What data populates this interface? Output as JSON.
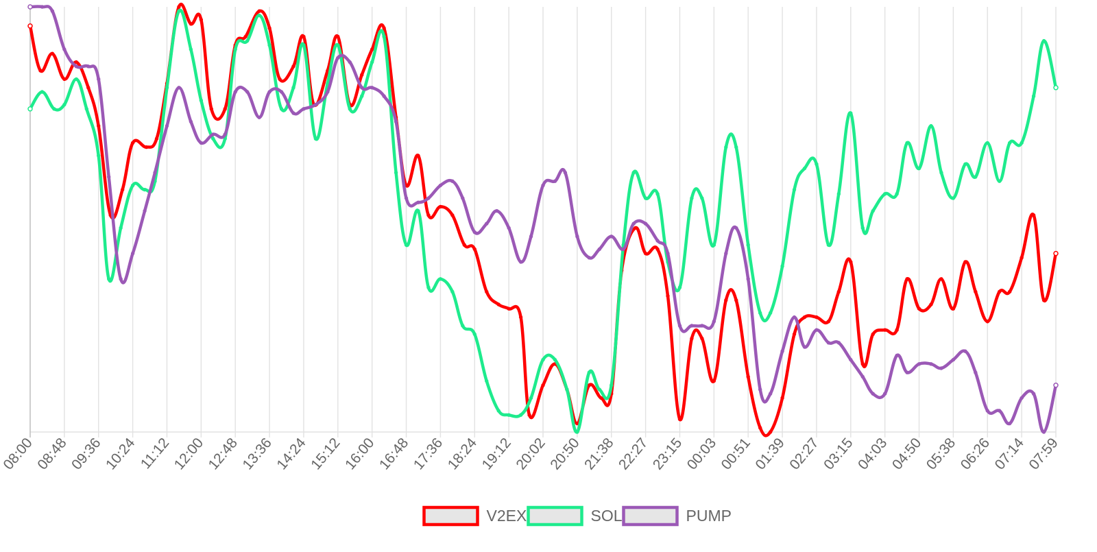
{
  "chart_data": {
    "type": "line",
    "smooth": true,
    "grid": {
      "vertical": true,
      "horizontal": false
    },
    "legend_position": "bottom-center",
    "y_axis": {
      "labels_shown": false,
      "ylim": [
        0,
        100
      ]
    },
    "x_tick_labels": [
      "08:00",
      "08:48",
      "09:36",
      "10:24",
      "11:12",
      "12:00",
      "12:48",
      "13:36",
      "14:24",
      "15:12",
      "16:00",
      "16:48",
      "17:36",
      "18:24",
      "19:12",
      "20:02",
      "20:50",
      "21:38",
      "22:27",
      "23:15",
      "00:03",
      "00:51",
      "01:39",
      "02:27",
      "03:15",
      "04:03",
      "04:50",
      "05:38",
      "06:26",
      "07:14",
      "07:59"
    ],
    "x_positions": [
      0,
      1,
      2,
      3,
      4,
      5,
      6,
      7,
      8,
      9,
      10,
      11,
      12,
      13,
      14,
      15,
      16,
      17,
      18,
      19,
      20,
      21,
      22,
      23,
      24,
      25,
      26,
      27,
      28,
      29,
      30
    ],
    "series": [
      {
        "name": "V2EX",
        "color": "#ff0000",
        "points": [
          [
            0,
            95.5
          ],
          [
            0.3,
            85
          ],
          [
            0.65,
            89
          ],
          [
            1,
            83
          ],
          [
            1.35,
            87
          ],
          [
            1.7,
            81
          ],
          [
            2,
            72
          ],
          [
            2.35,
            51
          ],
          [
            2.7,
            57
          ],
          [
            3,
            68
          ],
          [
            3.4,
            67
          ],
          [
            3.7,
            69
          ],
          [
            4,
            82
          ],
          [
            4.35,
            100
          ],
          [
            4.7,
            96
          ],
          [
            5,
            97
          ],
          [
            5.3,
            76
          ],
          [
            5.7,
            76
          ],
          [
            6,
            91
          ],
          [
            6.3,
            93
          ],
          [
            6.7,
            99
          ],
          [
            7,
            95
          ],
          [
            7.3,
            83
          ],
          [
            7.7,
            86
          ],
          [
            8,
            93
          ],
          [
            8.3,
            77
          ],
          [
            8.7,
            85
          ],
          [
            9,
            93
          ],
          [
            9.35,
            77
          ],
          [
            9.7,
            84
          ],
          [
            10,
            90
          ],
          [
            10.35,
            95
          ],
          [
            10.7,
            74
          ],
          [
            11,
            58
          ],
          [
            11.35,
            65
          ],
          [
            11.65,
            51
          ],
          [
            12,
            53
          ],
          [
            12.35,
            51
          ],
          [
            12.7,
            44
          ],
          [
            13,
            43
          ],
          [
            13.35,
            33
          ],
          [
            13.7,
            30
          ],
          [
            14,
            29
          ],
          [
            14.35,
            27
          ],
          [
            14.6,
            4
          ],
          [
            15,
            11
          ],
          [
            15.35,
            16
          ],
          [
            15.7,
            10
          ],
          [
            16,
            2
          ],
          [
            16.35,
            11
          ],
          [
            16.7,
            8
          ],
          [
            17,
            9
          ],
          [
            17.3,
            38
          ],
          [
            17.7,
            48
          ],
          [
            18,
            42
          ],
          [
            18.35,
            43
          ],
          [
            18.65,
            32
          ],
          [
            19,
            3
          ],
          [
            19.35,
            22
          ],
          [
            19.65,
            22
          ],
          [
            20,
            12
          ],
          [
            20.35,
            31
          ],
          [
            20.65,
            31
          ],
          [
            21,
            13
          ],
          [
            21.35,
            1
          ],
          [
            21.65,
            0
          ],
          [
            22,
            8
          ],
          [
            22.35,
            23
          ],
          [
            22.65,
            27
          ],
          [
            23,
            27
          ],
          [
            23.35,
            26
          ],
          [
            23.65,
            33
          ],
          [
            24,
            40
          ],
          [
            24.35,
            16
          ],
          [
            24.65,
            23
          ],
          [
            25,
            24
          ],
          [
            25.35,
            24
          ],
          [
            25.65,
            36
          ],
          [
            26,
            29
          ],
          [
            26.35,
            30
          ],
          [
            26.65,
            36
          ],
          [
            27,
            29
          ],
          [
            27.35,
            40
          ],
          [
            27.65,
            33
          ],
          [
            28,
            26
          ],
          [
            28.35,
            33
          ],
          [
            28.65,
            33
          ],
          [
            29,
            41
          ],
          [
            29.35,
            51
          ],
          [
            29.65,
            31
          ],
          [
            30,
            42
          ]
        ]
      },
      {
        "name": "SOL",
        "color": "#1eeb8d",
        "points": [
          [
            0,
            76
          ],
          [
            0.35,
            80
          ],
          [
            0.7,
            76
          ],
          [
            1,
            77
          ],
          [
            1.35,
            83
          ],
          [
            1.65,
            76
          ],
          [
            2,
            65
          ],
          [
            2.3,
            36
          ],
          [
            2.65,
            48
          ],
          [
            3,
            58
          ],
          [
            3.35,
            57
          ],
          [
            3.65,
            59
          ],
          [
            4,
            81
          ],
          [
            4.35,
            99
          ],
          [
            4.7,
            90
          ],
          [
            5,
            78
          ],
          [
            5.35,
            69
          ],
          [
            5.7,
            69
          ],
          [
            6,
            90
          ],
          [
            6.35,
            92
          ],
          [
            6.7,
            98
          ],
          [
            7,
            91
          ],
          [
            7.35,
            76
          ],
          [
            7.7,
            81
          ],
          [
            8,
            91
          ],
          [
            8.35,
            69
          ],
          [
            8.7,
            82
          ],
          [
            9,
            91
          ],
          [
            9.35,
            76
          ],
          [
            9.7,
            79
          ],
          [
            10,
            87
          ],
          [
            10.35,
            93
          ],
          [
            10.7,
            61
          ],
          [
            11,
            44
          ],
          [
            11.35,
            52
          ],
          [
            11.65,
            34
          ],
          [
            12,
            36
          ],
          [
            12.35,
            33
          ],
          [
            12.65,
            25
          ],
          [
            13,
            23
          ],
          [
            13.35,
            12
          ],
          [
            13.7,
            5
          ],
          [
            14,
            4
          ],
          [
            14.35,
            4
          ],
          [
            14.65,
            8
          ],
          [
            15,
            17
          ],
          [
            15.35,
            17
          ],
          [
            15.7,
            10
          ],
          [
            16,
            0
          ],
          [
            16.35,
            14
          ],
          [
            16.65,
            10
          ],
          [
            17,
            11
          ],
          [
            17.35,
            44
          ],
          [
            17.65,
            61
          ],
          [
            18,
            55
          ],
          [
            18.35,
            56
          ],
          [
            18.65,
            40
          ],
          [
            19,
            34
          ],
          [
            19.35,
            55
          ],
          [
            19.65,
            55
          ],
          [
            20,
            44
          ],
          [
            20.35,
            67
          ],
          [
            20.65,
            67
          ],
          [
            21,
            44
          ],
          [
            21.35,
            28
          ],
          [
            21.65,
            28
          ],
          [
            22,
            39
          ],
          [
            22.35,
            57
          ],
          [
            22.65,
            62
          ],
          [
            23,
            63
          ],
          [
            23.35,
            44
          ],
          [
            23.65,
            56
          ],
          [
            24,
            75
          ],
          [
            24.35,
            48
          ],
          [
            24.65,
            52
          ],
          [
            25,
            56
          ],
          [
            25.35,
            56
          ],
          [
            25.65,
            68
          ],
          [
            26,
            62
          ],
          [
            26.35,
            72
          ],
          [
            26.65,
            61
          ],
          [
            27,
            55
          ],
          [
            27.35,
            63
          ],
          [
            27.65,
            60
          ],
          [
            28,
            68
          ],
          [
            28.35,
            59
          ],
          [
            28.65,
            68
          ],
          [
            29,
            68
          ],
          [
            29.35,
            79
          ],
          [
            29.65,
            92
          ],
          [
            30,
            81
          ]
        ]
      },
      {
        "name": "PUMP",
        "color": "#9b59b6",
        "points": [
          [
            0,
            100
          ],
          [
            0.35,
            100
          ],
          [
            0.65,
            99
          ],
          [
            1,
            90
          ],
          [
            1.35,
            86
          ],
          [
            1.7,
            86
          ],
          [
            2,
            83
          ],
          [
            2.3,
            60
          ],
          [
            2.65,
            36
          ],
          [
            3,
            42
          ],
          [
            3.35,
            52
          ],
          [
            3.65,
            61
          ],
          [
            4,
            72
          ],
          [
            4.35,
            81
          ],
          [
            4.7,
            73
          ],
          [
            5,
            68
          ],
          [
            5.35,
            70
          ],
          [
            5.7,
            70
          ],
          [
            6,
            80
          ],
          [
            6.35,
            80
          ],
          [
            6.7,
            74
          ],
          [
            7,
            80
          ],
          [
            7.35,
            80
          ],
          [
            7.7,
            75
          ],
          [
            8,
            76
          ],
          [
            8.35,
            77
          ],
          [
            8.7,
            80
          ],
          [
            9,
            88
          ],
          [
            9.35,
            87
          ],
          [
            9.7,
            81
          ],
          [
            10,
            81
          ],
          [
            10.35,
            79
          ],
          [
            10.7,
            73
          ],
          [
            11,
            55
          ],
          [
            11.35,
            54
          ],
          [
            11.65,
            55
          ],
          [
            12,
            58
          ],
          [
            12.35,
            59
          ],
          [
            12.65,
            55
          ],
          [
            13,
            47
          ],
          [
            13.35,
            49
          ],
          [
            13.65,
            52
          ],
          [
            14,
            48
          ],
          [
            14.35,
            40
          ],
          [
            14.65,
            46
          ],
          [
            15,
            58
          ],
          [
            15.35,
            59
          ],
          [
            15.65,
            61
          ],
          [
            16,
            46
          ],
          [
            16.35,
            41
          ],
          [
            16.65,
            43
          ],
          [
            17,
            46
          ],
          [
            17.35,
            43
          ],
          [
            17.65,
            49
          ],
          [
            18,
            49
          ],
          [
            18.35,
            45
          ],
          [
            18.65,
            42
          ],
          [
            19,
            25
          ],
          [
            19.35,
            25
          ],
          [
            19.65,
            25
          ],
          [
            20,
            26
          ],
          [
            20.35,
            42
          ],
          [
            20.65,
            48
          ],
          [
            21,
            36
          ],
          [
            21.35,
            10
          ],
          [
            21.65,
            9
          ],
          [
            22,
            19
          ],
          [
            22.35,
            27
          ],
          [
            22.65,
            20
          ],
          [
            23,
            24
          ],
          [
            23.35,
            21
          ],
          [
            23.65,
            21
          ],
          [
            24,
            17
          ],
          [
            24.35,
            13
          ],
          [
            24.65,
            9
          ],
          [
            25,
            9
          ],
          [
            25.35,
            18
          ],
          [
            25.65,
            14
          ],
          [
            26,
            16
          ],
          [
            26.35,
            16
          ],
          [
            26.65,
            15
          ],
          [
            27,
            17
          ],
          [
            27.35,
            19
          ],
          [
            27.65,
            14
          ],
          [
            28,
            5
          ],
          [
            28.35,
            5
          ],
          [
            28.65,
            2
          ],
          [
            29,
            8
          ],
          [
            29.35,
            9
          ],
          [
            29.65,
            0
          ],
          [
            30,
            11
          ]
        ]
      }
    ]
  }
}
